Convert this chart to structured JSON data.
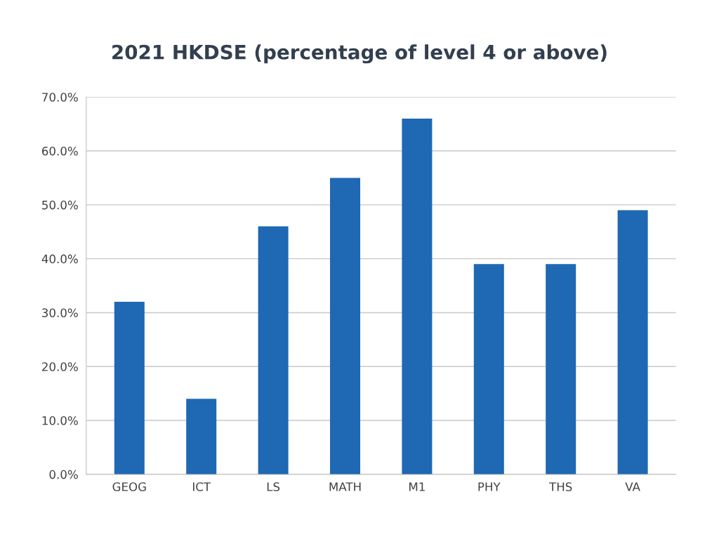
{
  "chart_data": {
    "type": "bar",
    "title": "2021 HKDSE (percentage of level 4 or above)",
    "categories": [
      "GEOG",
      "ICT",
      "LS",
      "MATH",
      "M1",
      "PHY",
      "THS",
      "VA"
    ],
    "values": [
      32,
      14,
      46,
      55,
      66,
      39,
      39,
      49
    ],
    "color": "#1f68b3",
    "ylim": [
      0,
      70
    ],
    "yticks": [
      {
        "value": 0,
        "label": "0.0%"
      },
      {
        "value": 10,
        "label": "10.0%"
      },
      {
        "value": 20,
        "label": "20.0%"
      },
      {
        "value": 30,
        "label": "30.0%"
      },
      {
        "value": 40,
        "label": "40.0%"
      },
      {
        "value": 50,
        "label": "50.0%"
      },
      {
        "value": 60,
        "label": "60.0%"
      },
      {
        "value": 70,
        "label": "70.0%"
      }
    ],
    "grid": "y"
  }
}
